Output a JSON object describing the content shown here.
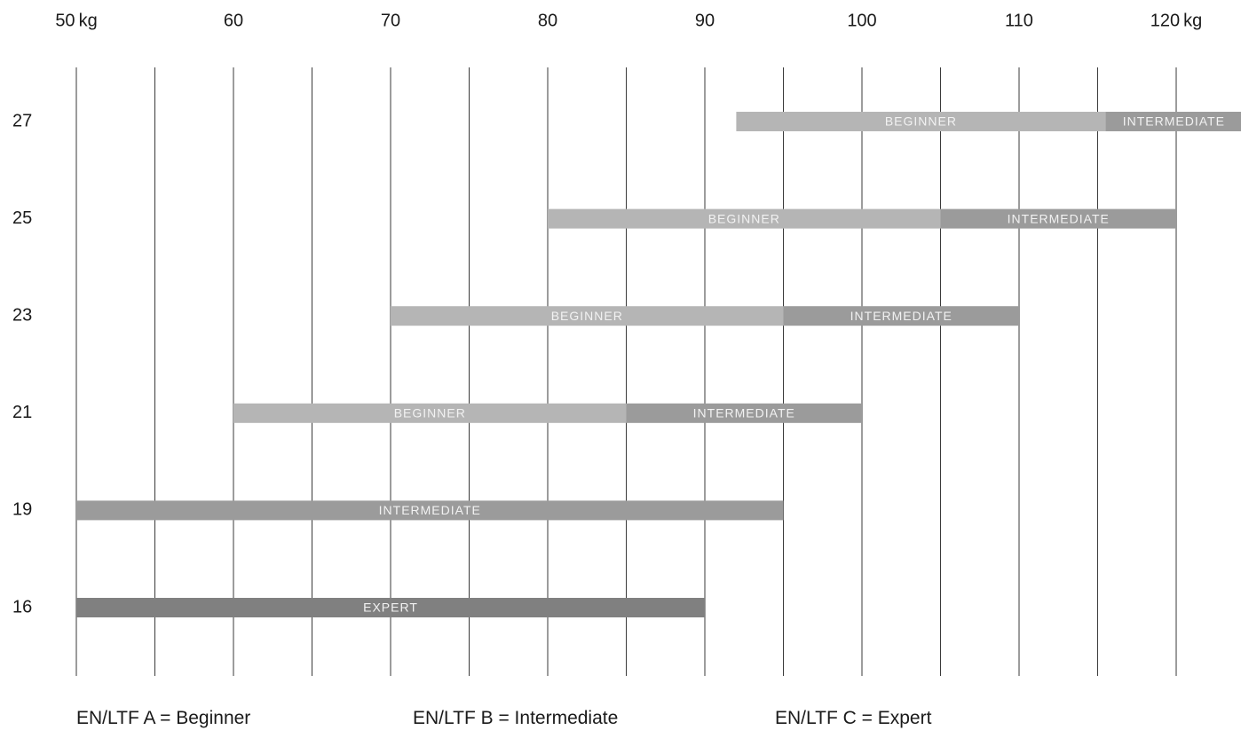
{
  "chart_data": {
    "type": "bar",
    "orientation": "horizontal-range",
    "x_ticks": [
      "50 kg",
      "60",
      "70",
      "80",
      "90",
      "100",
      "110",
      "120 kg"
    ],
    "x_tick_values": [
      50,
      60,
      70,
      80,
      90,
      100,
      110,
      120
    ],
    "xlim": [
      50,
      120
    ],
    "grid_step": 5,
    "grid": true,
    "rows": [
      {
        "label": "27",
        "segments": [
          {
            "from": 92,
            "to": 115.5,
            "label": "BEGINNER",
            "level": "beginner"
          },
          {
            "from": 115.5,
            "to": 124.2,
            "label": "INTERMEDIATE",
            "level": "intermediate"
          }
        ]
      },
      {
        "label": "25",
        "segments": [
          {
            "from": 80,
            "to": 105,
            "label": "BEGINNER",
            "level": "beginner"
          },
          {
            "from": 105,
            "to": 120,
            "label": "INTERMEDIATE",
            "level": "intermediate"
          }
        ]
      },
      {
        "label": "23",
        "segments": [
          {
            "from": 70,
            "to": 95,
            "label": "BEGINNER",
            "level": "beginner"
          },
          {
            "from": 95,
            "to": 110,
            "label": "INTERMEDIATE",
            "level": "intermediate"
          }
        ]
      },
      {
        "label": "21",
        "segments": [
          {
            "from": 60,
            "to": 85,
            "label": "BEGINNER",
            "level": "beginner"
          },
          {
            "from": 85,
            "to": 100,
            "label": "INTERMEDIATE",
            "level": "intermediate"
          }
        ]
      },
      {
        "label": "19",
        "segments": [
          {
            "from": 50,
            "to": 95,
            "label": "INTERMEDIATE",
            "level": "intermediate"
          }
        ]
      },
      {
        "label": "16",
        "segments": [
          {
            "from": 50,
            "to": 90,
            "label": "EXPERT",
            "level": "expert"
          }
        ]
      }
    ],
    "colors": {
      "beginner": "#b5b5b5",
      "intermediate": "#9b9b9b",
      "expert": "#808080",
      "grid": "#3a3a3a",
      "segment_text": "#f2f2f2"
    }
  },
  "legend": {
    "a": "EN/LTF A = Beginner",
    "b": "EN/LTF B = Intermediate",
    "c": "EN/LTF C = Expert"
  }
}
